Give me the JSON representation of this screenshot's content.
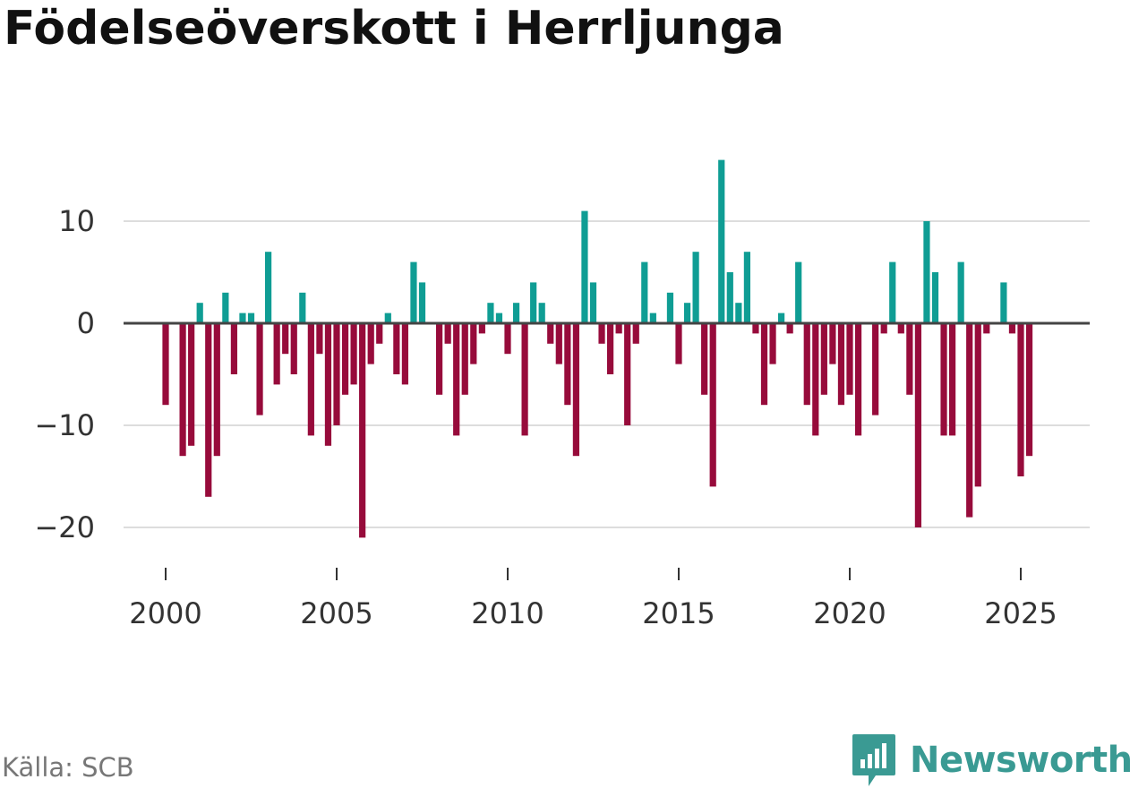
{
  "chart_data": {
    "type": "bar",
    "title": "Födelseöverskott i Herrljunga",
    "xlabel": "",
    "ylabel": "",
    "ylim": [
      -24,
      20
    ],
    "y_ticks": [
      10,
      0,
      -10,
      -20
    ],
    "y_tick_labels": [
      "10",
      "0",
      "−10",
      "−20"
    ],
    "x_ticks": [
      2000,
      2005,
      2010,
      2015,
      2020,
      2025
    ],
    "x_tick_labels": [
      "2000",
      "2005",
      "2010",
      "2015",
      "2020",
      "2025"
    ],
    "x_start": 2000.0,
    "x_step": 0.25,
    "values": [
      -8,
      0,
      -13,
      -12,
      2,
      -17,
      -13,
      3,
      -5,
      1,
      1,
      -9,
      7,
      -6,
      -3,
      -5,
      3,
      -11,
      -3,
      -12,
      -10,
      -7,
      -6,
      -21,
      -4,
      -2,
      1,
      -5,
      -6,
      6,
      4,
      0,
      -7,
      -2,
      -11,
      -7,
      -4,
      -1,
      2,
      1,
      -3,
      2,
      -11,
      4,
      2,
      -2,
      -4,
      -8,
      -13,
      11,
      4,
      -2,
      -5,
      -1,
      -10,
      -2,
      6,
      1,
      0,
      3,
      -4,
      2,
      7,
      -7,
      -16,
      16,
      5,
      2,
      7,
      -1,
      -8,
      -4,
      1,
      -1,
      6,
      -8,
      -11,
      -7,
      -4,
      -8,
      -7,
      -11,
      0,
      -9,
      -1,
      6,
      -1,
      -7,
      -20,
      10,
      5,
      -11,
      -11,
      6,
      -19,
      -16,
      -1,
      0,
      4,
      -1,
      -15,
      -13
    ],
    "colors": {
      "positive": "#0f9d94",
      "negative": "#970b3b",
      "zero_line": "#444444",
      "grid": "#dddddd"
    }
  },
  "source": "Källa: SCB",
  "brand": {
    "name": "Newsworthy",
    "color": "#3a9a93"
  }
}
